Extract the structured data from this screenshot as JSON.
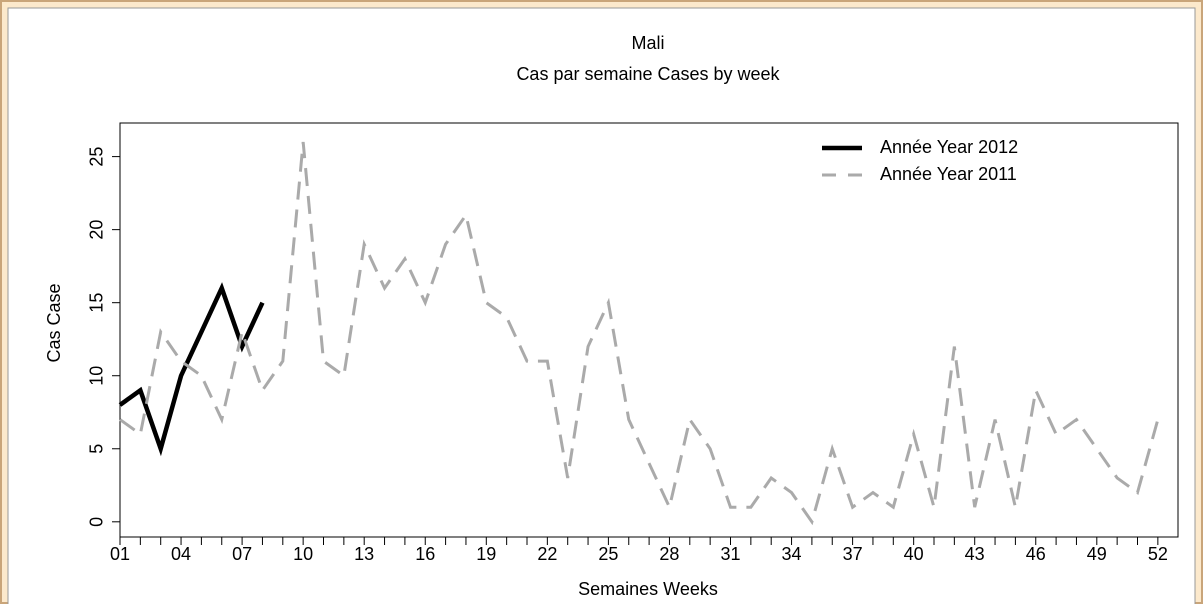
{
  "chart_data": {
    "type": "line",
    "title": "Mali",
    "subtitle": "Cas par semaine Cases by week",
    "x_label": "Semaines Weeks",
    "y_label": "Cas Case",
    "categories": [
      "01",
      null,
      null,
      "04",
      null,
      null,
      "07",
      null,
      null,
      "10",
      null,
      null,
      "13",
      null,
      null,
      "16",
      null,
      null,
      "19",
      null,
      null,
      "22",
      null,
      null,
      "25",
      null,
      null,
      "28",
      null,
      null,
      "31",
      null,
      null,
      "34",
      null,
      null,
      "37",
      null,
      null,
      "40",
      null,
      null,
      "43",
      null,
      null,
      "46",
      null,
      null,
      "49",
      null,
      null,
      "52"
    ],
    "series": [
      {
        "name": "Année Year 2012",
        "color": "#000000",
        "dashed": false,
        "values": [
          8,
          9,
          5,
          10,
          13,
          16,
          12,
          15,
          null,
          null,
          null,
          null,
          null,
          null,
          null,
          null,
          null,
          null,
          null,
          null,
          null,
          null,
          null,
          null,
          null,
          null,
          null,
          null,
          null,
          null,
          null,
          null,
          null,
          null,
          null,
          null,
          null,
          null,
          null,
          null,
          null,
          null,
          null,
          null,
          null,
          null,
          null,
          null,
          null,
          null,
          null,
          null
        ]
      },
      {
        "name": "Année Year 2011",
        "color": "#aaaaaa",
        "dashed": true,
        "values": [
          7,
          6,
          13,
          11,
          10,
          7,
          13,
          9,
          11,
          26,
          11,
          10,
          19,
          16,
          18,
          15,
          19,
          21,
          15,
          14,
          11,
          11,
          3,
          12,
          15,
          7,
          4,
          1,
          7,
          5,
          1,
          1,
          3,
          2,
          0,
          5,
          1,
          2,
          1,
          6,
          1,
          12,
          1,
          7,
          1,
          9,
          6,
          7,
          5,
          3,
          2,
          7
        ]
      }
    ],
    "ylim": [
      -1.04,
      27.3
    ],
    "yticks": [
      0,
      5,
      10,
      15,
      20,
      25
    ],
    "legend": "top-right"
  }
}
